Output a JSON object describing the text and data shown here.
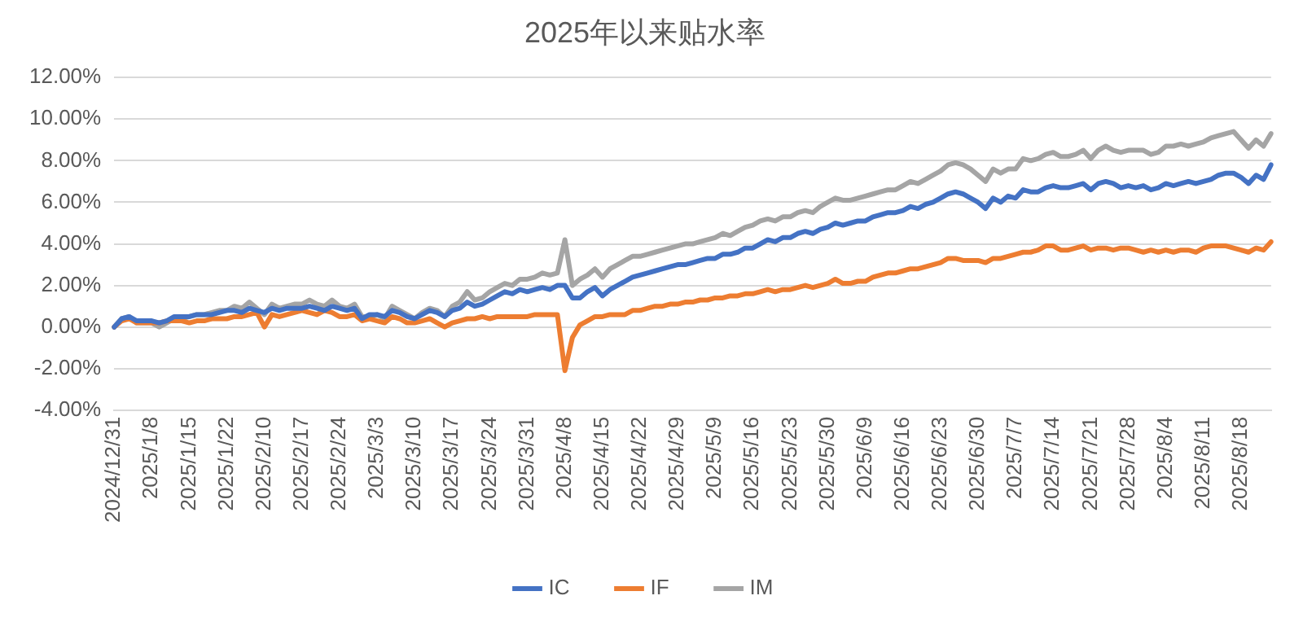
{
  "chart_data": {
    "type": "line",
    "title": "2025年以来贴水率",
    "categories": [
      "2024/12/31",
      null,
      null,
      null,
      null,
      "2025/1/8",
      null,
      null,
      null,
      null,
      "2025/1/15",
      null,
      null,
      null,
      null,
      "2025/1/22",
      null,
      null,
      null,
      null,
      "2025/2/10",
      null,
      null,
      null,
      null,
      "2025/2/17",
      null,
      null,
      null,
      null,
      "2025/2/24",
      null,
      null,
      null,
      null,
      "2025/3/3",
      null,
      null,
      null,
      null,
      "2025/3/10",
      null,
      null,
      null,
      null,
      "2025/3/17",
      null,
      null,
      null,
      null,
      "2025/3/24",
      null,
      null,
      null,
      null,
      "2025/3/31",
      null,
      null,
      null,
      null,
      "2025/4/8",
      null,
      null,
      null,
      null,
      "2025/4/15",
      null,
      null,
      null,
      null,
      "2025/4/22",
      null,
      null,
      null,
      null,
      "2025/4/29",
      null,
      null,
      null,
      null,
      "2025/5/9",
      null,
      null,
      null,
      null,
      "2025/5/16",
      null,
      null,
      null,
      null,
      "2025/5/23",
      null,
      null,
      null,
      null,
      "2025/5/30",
      null,
      null,
      null,
      null,
      "2025/6/9",
      null,
      null,
      null,
      null,
      "2025/6/16",
      null,
      null,
      null,
      null,
      "2025/6/23",
      null,
      null,
      null,
      null,
      "2025/6/30",
      null,
      null,
      null,
      null,
      "2025/7/7",
      null,
      null,
      null,
      null,
      "2025/7/14",
      null,
      null,
      null,
      null,
      "2025/7/21",
      null,
      null,
      null,
      null,
      "2025/7/28",
      null,
      null,
      null,
      null,
      "2025/8/4",
      null,
      null,
      null,
      null,
      "2025/8/11",
      null,
      null,
      null,
      null,
      "2025/8/18",
      null,
      null,
      null,
      null
    ],
    "series": [
      {
        "name": "IC",
        "color": "#4472c4",
        "values": [
          0,
          0.4,
          0.5,
          0.3,
          0.3,
          0.3,
          0.2,
          0.3,
          0.5,
          0.5,
          0.5,
          0.6,
          0.6,
          0.6,
          0.7,
          0.8,
          0.8,
          0.7,
          0.9,
          0.8,
          0.7,
          0.9,
          0.8,
          0.9,
          0.9,
          0.9,
          1.0,
          0.9,
          0.8,
          1.0,
          0.9,
          0.8,
          0.9,
          0.4,
          0.6,
          0.6,
          0.5,
          0.8,
          0.7,
          0.5,
          0.4,
          0.6,
          0.8,
          0.7,
          0.5,
          0.8,
          0.9,
          1.2,
          1.0,
          1.1,
          1.3,
          1.5,
          1.7,
          1.6,
          1.8,
          1.7,
          1.8,
          1.9,
          1.8,
          2.0,
          2.0,
          1.4,
          1.4,
          1.7,
          1.9,
          1.5,
          1.8,
          2.0,
          2.2,
          2.4,
          2.5,
          2.6,
          2.7,
          2.8,
          2.9,
          3.0,
          3.0,
          3.1,
          3.2,
          3.3,
          3.3,
          3.5,
          3.5,
          3.6,
          3.8,
          3.8,
          4.0,
          4.2,
          4.1,
          4.3,
          4.3,
          4.5,
          4.6,
          4.5,
          4.7,
          4.8,
          5.0,
          4.9,
          5.0,
          5.1,
          5.1,
          5.3,
          5.4,
          5.5,
          5.5,
          5.6,
          5.8,
          5.7,
          5.9,
          6.0,
          6.2,
          6.4,
          6.5,
          6.4,
          6.2,
          6.0,
          5.7,
          6.2,
          6.0,
          6.3,
          6.2,
          6.6,
          6.5,
          6.5,
          6.7,
          6.8,
          6.7,
          6.7,
          6.8,
          6.9,
          6.6,
          6.9,
          7.0,
          6.9,
          6.7,
          6.8,
          6.7,
          6.8,
          6.6,
          6.7,
          6.9,
          6.8,
          6.9,
          7.0,
          6.9,
          7.0,
          7.1,
          7.3,
          7.4,
          7.4,
          7.2,
          6.9,
          7.3,
          7.1,
          7.8
        ]
      },
      {
        "name": "IF",
        "color": "#ed7d31",
        "values": [
          0,
          0.3,
          0.4,
          0.2,
          0.2,
          0.2,
          0.2,
          0.3,
          0.3,
          0.3,
          0.2,
          0.3,
          0.3,
          0.4,
          0.4,
          0.4,
          0.5,
          0.5,
          0.6,
          0.7,
          0.0,
          0.6,
          0.5,
          0.6,
          0.7,
          0.8,
          0.7,
          0.6,
          0.8,
          0.7,
          0.5,
          0.5,
          0.6,
          0.3,
          0.4,
          0.3,
          0.2,
          0.5,
          0.4,
          0.2,
          0.2,
          0.3,
          0.4,
          0.2,
          0.0,
          0.2,
          0.3,
          0.4,
          0.4,
          0.5,
          0.4,
          0.5,
          0.5,
          0.5,
          0.5,
          0.5,
          0.6,
          0.6,
          0.6,
          0.6,
          -2.1,
          -0.5,
          0.1,
          0.3,
          0.5,
          0.5,
          0.6,
          0.6,
          0.6,
          0.8,
          0.8,
          0.9,
          1.0,
          1.0,
          1.1,
          1.1,
          1.2,
          1.2,
          1.3,
          1.3,
          1.4,
          1.4,
          1.5,
          1.5,
          1.6,
          1.6,
          1.7,
          1.8,
          1.7,
          1.8,
          1.8,
          1.9,
          2.0,
          1.9,
          2.0,
          2.1,
          2.3,
          2.1,
          2.1,
          2.2,
          2.2,
          2.4,
          2.5,
          2.6,
          2.6,
          2.7,
          2.8,
          2.8,
          2.9,
          3.0,
          3.1,
          3.3,
          3.3,
          3.2,
          3.2,
          3.2,
          3.1,
          3.3,
          3.3,
          3.4,
          3.5,
          3.6,
          3.6,
          3.7,
          3.9,
          3.9,
          3.7,
          3.7,
          3.8,
          3.9,
          3.7,
          3.8,
          3.8,
          3.7,
          3.8,
          3.8,
          3.7,
          3.6,
          3.7,
          3.6,
          3.7,
          3.6,
          3.7,
          3.7,
          3.6,
          3.8,
          3.9,
          3.9,
          3.9,
          3.8,
          3.7,
          3.6,
          3.8,
          3.7,
          4.1
        ]
      },
      {
        "name": "IM",
        "color": "#a5a5a5",
        "values": [
          0,
          0.4,
          0.5,
          0.2,
          0.2,
          0.2,
          0,
          0.2,
          0.4,
          0.4,
          0.5,
          0.6,
          0.6,
          0.7,
          0.8,
          0.8,
          1.0,
          0.9,
          1.2,
          0.9,
          0.6,
          1.1,
          0.9,
          1.0,
          1.1,
          1.1,
          1.3,
          1.1,
          1.0,
          1.3,
          1.0,
          0.9,
          1.1,
          0.5,
          0.5,
          0.6,
          0.4,
          1.0,
          0.8,
          0.6,
          0.4,
          0.7,
          0.9,
          0.8,
          0.5,
          1.0,
          1.2,
          1.7,
          1.3,
          1.4,
          1.7,
          1.9,
          2.1,
          2.0,
          2.3,
          2.3,
          2.4,
          2.6,
          2.5,
          2.6,
          4.2,
          2.0,
          2.3,
          2.5,
          2.8,
          2.4,
          2.8,
          3.0,
          3.2,
          3.4,
          3.4,
          3.5,
          3.6,
          3.7,
          3.8,
          3.9,
          4.0,
          4.0,
          4.1,
          4.2,
          4.3,
          4.5,
          4.4,
          4.6,
          4.8,
          4.9,
          5.1,
          5.2,
          5.1,
          5.3,
          5.3,
          5.5,
          5.6,
          5.5,
          5.8,
          6.0,
          6.2,
          6.1,
          6.1,
          6.2,
          6.3,
          6.4,
          6.5,
          6.6,
          6.6,
          6.8,
          7.0,
          6.9,
          7.1,
          7.3,
          7.5,
          7.8,
          7.9,
          7.8,
          7.6,
          7.3,
          7.0,
          7.6,
          7.4,
          7.6,
          7.6,
          8.1,
          8.0,
          8.1,
          8.3,
          8.4,
          8.2,
          8.2,
          8.3,
          8.5,
          8.1,
          8.5,
          8.7,
          8.5,
          8.4,
          8.5,
          8.5,
          8.5,
          8.3,
          8.4,
          8.7,
          8.7,
          8.8,
          8.7,
          8.8,
          8.9,
          9.1,
          9.2,
          9.3,
          9.4,
          9.0,
          8.6,
          9.0,
          8.7,
          9.3
        ]
      }
    ],
    "ylim": [
      -4,
      12
    ],
    "yticks": [
      {
        "value": -4,
        "label": "-4.00%"
      },
      {
        "value": -2,
        "label": "-2.00%"
      },
      {
        "value": 0,
        "label": "0.00%"
      },
      {
        "value": 2,
        "label": "2.00%"
      },
      {
        "value": 4,
        "label": "4.00%"
      },
      {
        "value": 6,
        "label": "6.00%"
      },
      {
        "value": 8,
        "label": "8.00%"
      },
      {
        "value": 10,
        "label": "10.00%"
      },
      {
        "value": 12,
        "label": "12.00%"
      }
    ],
    "grid": "y",
    "legend": "bottom",
    "marker": "none",
    "line_style": "solid"
  }
}
